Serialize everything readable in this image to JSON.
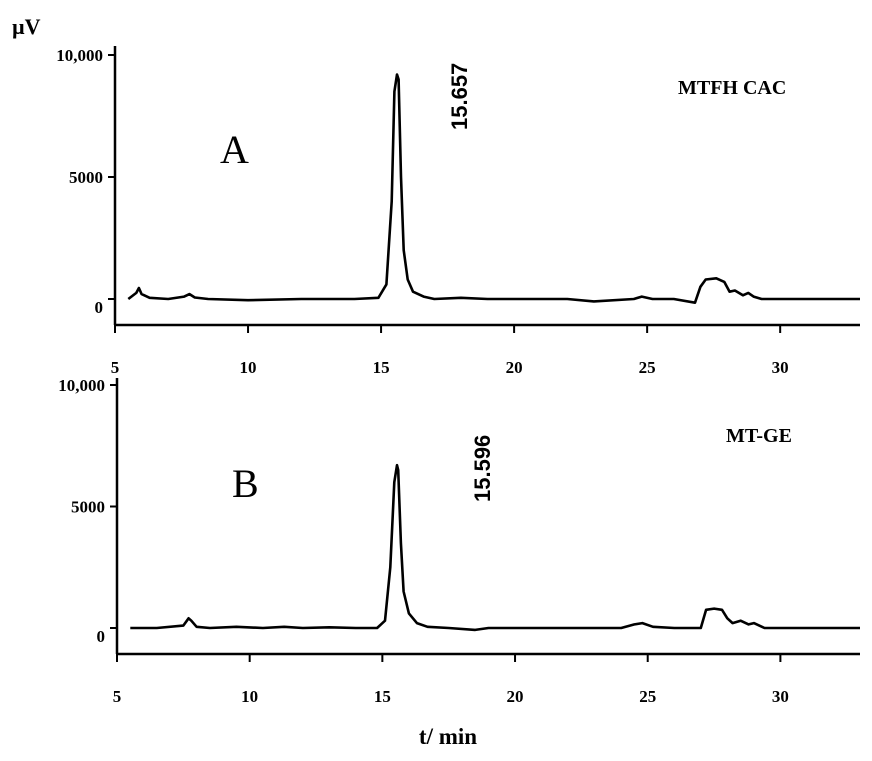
{
  "figure": {
    "y_unit": "µV",
    "xlabel": "t/ min"
  },
  "chart_data": [
    {
      "type": "line",
      "panel": "A",
      "sample": "MTFH CAC",
      "peak_label": "15.657",
      "xlabel": "t/ min",
      "ylabel": "µV",
      "xlim": [
        5,
        33
      ],
      "ylim": [
        -1000,
        10000
      ],
      "x_ticks": [
        5,
        10,
        15,
        20,
        25,
        30
      ],
      "x_tick_labels": [
        "5",
        "10",
        "15",
        "20",
        "25",
        "30"
      ],
      "y_ticks": [
        0,
        5000,
        10000
      ],
      "y_tick_labels": [
        "0",
        "5000",
        "10,000"
      ],
      "series": [
        {
          "x": [
            5.5,
            5.8,
            5.9,
            6.0,
            6.3,
            7.0,
            7.6,
            7.8,
            8.0,
            8.5,
            10,
            12,
            14,
            14.9,
            15.2,
            15.4,
            15.5,
            15.6,
            15.657,
            15.75,
            15.85,
            16.0,
            16.2,
            16.6,
            17.0,
            18,
            19,
            20,
            22,
            23,
            24.5,
            24.8,
            25.2,
            26,
            26.8,
            27.0,
            27.2,
            27.6,
            27.9,
            28.1,
            28.3,
            28.6,
            28.8,
            29.0,
            29.3,
            30,
            31,
            32,
            33
          ],
          "y": [
            0,
            250,
            450,
            200,
            50,
            0,
            100,
            200,
            60,
            0,
            -50,
            0,
            0,
            50,
            600,
            4000,
            8500,
            9200,
            9000,
            5000,
            2000,
            800,
            300,
            100,
            0,
            50,
            0,
            0,
            0,
            -100,
            0,
            100,
            0,
            0,
            -150,
            500,
            800,
            850,
            700,
            300,
            350,
            150,
            250,
            100,
            0,
            0,
            0,
            0,
            0
          ]
        }
      ]
    },
    {
      "type": "line",
      "panel": "B",
      "sample": "MT-GE",
      "peak_label": "15.596",
      "xlabel": "t/ min",
      "ylabel": "µV",
      "xlim": [
        5,
        33
      ],
      "ylim": [
        -1000,
        10000
      ],
      "x_ticks": [
        5,
        10,
        15,
        20,
        25,
        30
      ],
      "x_tick_labels": [
        "5",
        "10",
        "15",
        "20",
        "25",
        "30"
      ],
      "y_ticks": [
        0,
        5000,
        10000
      ],
      "y_tick_labels": [
        "0",
        "5000",
        "10,000"
      ],
      "series": [
        {
          "x": [
            5.5,
            6.5,
            7.5,
            7.7,
            7.8,
            8.0,
            8.5,
            9.5,
            10.5,
            11.3,
            12,
            13,
            14,
            14.8,
            15.1,
            15.3,
            15.45,
            15.55,
            15.596,
            15.7,
            15.8,
            16.0,
            16.3,
            16.7,
            17.5,
            18.5,
            19,
            20,
            22,
            24,
            24.5,
            24.8,
            25.2,
            26,
            27.0,
            27.2,
            27.5,
            27.8,
            28.0,
            28.2,
            28.5,
            28.8,
            29.0,
            29.4,
            30,
            31,
            32,
            33
          ],
          "y": [
            0,
            0,
            100,
            400,
            300,
            50,
            0,
            50,
            0,
            50,
            0,
            30,
            0,
            0,
            300,
            2500,
            6000,
            6700,
            6500,
            3500,
            1500,
            600,
            200,
            50,
            0,
            -80,
            0,
            0,
            0,
            0,
            150,
            200,
            50,
            0,
            0,
            750,
            800,
            750,
            400,
            200,
            300,
            150,
            200,
            0,
            0,
            0,
            0,
            0
          ]
        }
      ]
    }
  ]
}
